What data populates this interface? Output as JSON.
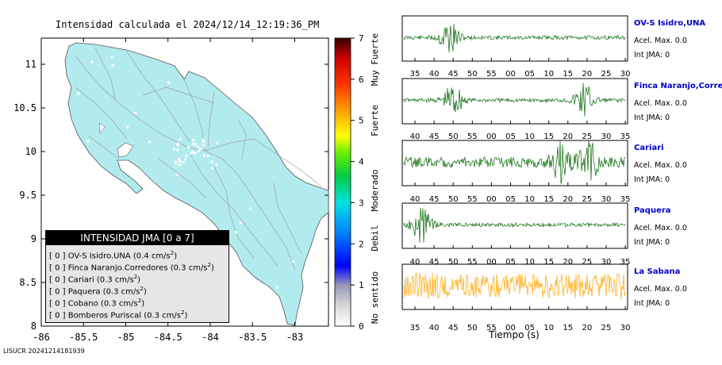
{
  "map": {
    "title": "Intensidad calculada el 2024/12/14_12:19:36_PM",
    "footer_id": "LISUCR 20241214181939",
    "x_ticks": [
      "-86",
      "-85.5",
      "-85",
      "-84.5",
      "-84",
      "-83.5",
      "-83"
    ],
    "y_ticks": [
      "11",
      "10.5",
      "10",
      "9.5",
      "9",
      "8.5",
      "8"
    ],
    "colors": {
      "land": "#b2ebee",
      "sea": "#ffffff",
      "roads": "#9aa0a0",
      "towns": "#ffffff"
    }
  },
  "colorbar": {
    "ticks": [
      "0",
      "1",
      "2",
      "3",
      "4",
      "5",
      "6",
      "7"
    ],
    "labels": [
      "No sentido",
      "Debil",
      "Moderado",
      "Fuerte",
      "Muy Fuerte"
    ]
  },
  "legend": {
    "title": "INTENSIDAD JMA [0 a 7]",
    "entries": [
      {
        "mark": "[ 0 ]",
        "station": "OV-S Isidro.UNA",
        "accel": "(0.4 cm/s",
        "sup": "2",
        "close": ")"
      },
      {
        "mark": "[ 0 ]",
        "station": "Finca Naranjo.Corredores",
        "accel": "(0.3 cm/s",
        "sup": "2",
        "close": ")"
      },
      {
        "mark": "[ 0 ]",
        "station": "Cariari",
        "accel": "(0.3 cm/s",
        "sup": "2",
        "close": ")"
      },
      {
        "mark": "[ 0 ]",
        "station": "Paquera",
        "accel": "(0.3 cm/s",
        "sup": "2",
        "close": ")"
      },
      {
        "mark": "[ 0 ]",
        "station": "Cobano",
        "accel": "(0.3 cm/s",
        "sup": "2",
        "close": ")"
      },
      {
        "mark": "[ 0 ]",
        "station": "Bomberos Puriscal",
        "accel": "(0.3 cm/s",
        "sup": "2",
        "close": ")"
      }
    ]
  },
  "waveforms": {
    "x_label": "Tiempo (s)",
    "stations": [
      {
        "name": "OV-S Isidro,UNA",
        "accel": "Acel. Max. 0.0",
        "jma": "Int JMA: 0",
        "color": "#006600",
        "ticks": [
          "35",
          "40",
          "45",
          "50",
          "55",
          "00",
          "05",
          "10",
          "15",
          "20",
          "25",
          "30"
        ]
      },
      {
        "name": "Finca Naranjo,Corredores",
        "accel": "Acel. Max. 0.0",
        "jma": "Int JMA: 0",
        "color": "#006600",
        "ticks": [
          "40",
          "45",
          "50",
          "55",
          "00",
          "05",
          "10",
          "15",
          "20",
          "25",
          "30",
          "35"
        ]
      },
      {
        "name": "Cariari",
        "accel": "Acel. Max. 0.0",
        "jma": "Int JMA: 0",
        "color": "#006600",
        "ticks": [
          "40",
          "45",
          "50",
          "55",
          "00",
          "05",
          "10",
          "15",
          "20",
          "25",
          "30",
          "35"
        ]
      },
      {
        "name": "Paquera",
        "accel": "Acel. Max. 0.0",
        "jma": "Int JMA: 0",
        "color": "#006600",
        "ticks": [
          "40",
          "45",
          "50",
          "55",
          "00",
          "05",
          "10",
          "15",
          "20",
          "25",
          "30",
          "35"
        ]
      },
      {
        "name": "La Sabana",
        "accel": "Acel. Max. 0.0",
        "jma": "Int JMA: 0",
        "color": "#ffa500",
        "ticks": [
          "35",
          "40",
          "45",
          "50",
          "55",
          "00",
          "05",
          "10",
          "15",
          "20",
          "25",
          "30"
        ]
      }
    ]
  },
  "chart_data": [
    {
      "type": "heatmap",
      "title": "Intensidad calculada el 2024/12/14_12:19:36_PM",
      "xlabel": "",
      "ylabel": "",
      "xlim": [
        -86,
        -82.6
      ],
      "ylim": [
        8,
        11.3
      ],
      "colorbar_range": [
        0,
        7
      ],
      "legend_title": "INTENSIDAD JMA [0 a 7]",
      "stations": [
        {
          "name": "OV-S Isidro.UNA",
          "intensity": 0,
          "accel_cm_s2": 0.4
        },
        {
          "name": "Finca Naranjo.Corredores",
          "intensity": 0,
          "accel_cm_s2": 0.3
        },
        {
          "name": "Cariari",
          "intensity": 0,
          "accel_cm_s2": 0.3
        },
        {
          "name": "Paquera",
          "intensity": 0,
          "accel_cm_s2": 0.3
        },
        {
          "name": "Cobano",
          "intensity": 0,
          "accel_cm_s2": 0.3
        },
        {
          "name": "Bomberos Puriscal",
          "intensity": 0,
          "accel_cm_s2": 0.3
        }
      ]
    },
    {
      "type": "line",
      "xlabel": "Tiempo (s)",
      "series": [
        {
          "name": "OV-S Isidro,UNA",
          "max_accel": 0.0,
          "jma": 0
        },
        {
          "name": "Finca Naranjo,Corredores",
          "max_accel": 0.0,
          "jma": 0
        },
        {
          "name": "Cariari",
          "max_accel": 0.0,
          "jma": 0
        },
        {
          "name": "Paquera",
          "max_accel": 0.0,
          "jma": 0
        },
        {
          "name": "La Sabana",
          "max_accel": 0.0,
          "jma": 0
        }
      ]
    }
  ]
}
